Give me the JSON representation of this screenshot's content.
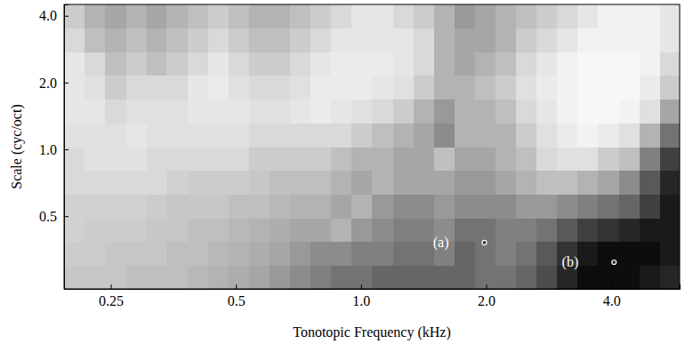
{
  "chart_data": {
    "type": "heatmap",
    "x_label": "Tonotopic Frequency (kHz)",
    "y_label": "Scale (cyc/oct)",
    "log": true,
    "xlim": [
      0.193,
      5.84
    ],
    "ylim": [
      0.235,
      4.5
    ],
    "xticks": [
      0.25,
      0.5,
      {
        "value": 1,
        "label": "1.0"
      },
      {
        "value": 2,
        "label": "2.0"
      },
      {
        "value": 4,
        "label": "4.0"
      }
    ],
    "yticks": [
      0.5,
      {
        "value": 1,
        "label": "1.0"
      },
      {
        "value": 2,
        "label": "2.0"
      },
      {
        "value": 4,
        "label": "4.0"
      }
    ],
    "x": [
      0.204,
      0.229,
      0.257,
      0.288,
      0.322,
      0.361,
      0.405,
      0.453,
      0.508,
      0.569,
      0.638,
      0.715,
      0.801,
      0.897,
      1.005,
      1.126,
      1.262,
      1.414,
      1.584,
      1.775,
      1.989,
      2.229,
      2.497,
      2.798,
      3.135,
      3.513,
      3.937,
      4.411,
      4.943,
      5.538
    ],
    "y": [
      0.266,
      0.34,
      0.435,
      0.556,
      0.711,
      0.91,
      1.164,
      1.489,
      1.904,
      2.435,
      3.115,
      3.984
    ],
    "zlim": [
      0,
      1
    ],
    "z": [
      [
        0.22,
        0.22,
        0.22,
        0.25,
        0.25,
        0.25,
        0.28,
        0.3,
        0.32,
        0.35,
        0.4,
        0.45,
        0.5,
        0.55,
        0.55,
        0.6,
        0.6,
        0.6,
        0.6,
        0.6,
        0.55,
        0.55,
        0.6,
        0.7,
        0.85,
        0.95,
        0.95,
        0.95,
        0.9,
        0.85
      ],
      [
        0.2,
        0.2,
        0.22,
        0.22,
        0.22,
        0.25,
        0.25,
        0.28,
        0.3,
        0.32,
        0.35,
        0.4,
        0.45,
        0.45,
        0.5,
        0.5,
        0.55,
        0.55,
        0.5,
        0.6,
        0.55,
        0.5,
        0.55,
        0.65,
        0.8,
        0.9,
        0.95,
        0.95,
        0.95,
        0.9
      ],
      [
        0.18,
        0.2,
        0.2,
        0.2,
        0.22,
        0.22,
        0.25,
        0.25,
        0.28,
        0.3,
        0.32,
        0.35,
        0.35,
        0.3,
        0.4,
        0.45,
        0.5,
        0.5,
        0.45,
        0.55,
        0.55,
        0.5,
        0.5,
        0.55,
        0.65,
        0.75,
        0.8,
        0.85,
        0.9,
        0.9
      ],
      [
        0.18,
        0.18,
        0.18,
        0.18,
        0.2,
        0.22,
        0.22,
        0.22,
        0.25,
        0.25,
        0.28,
        0.3,
        0.3,
        0.35,
        0.3,
        0.4,
        0.45,
        0.45,
        0.4,
        0.45,
        0.45,
        0.45,
        0.4,
        0.4,
        0.45,
        0.5,
        0.55,
        0.6,
        0.75,
        0.9
      ],
      [
        0.15,
        0.15,
        0.15,
        0.15,
        0.15,
        0.18,
        0.2,
        0.2,
        0.2,
        0.22,
        0.25,
        0.25,
        0.25,
        0.3,
        0.35,
        0.3,
        0.35,
        0.35,
        0.35,
        0.4,
        0.4,
        0.35,
        0.3,
        0.25,
        0.25,
        0.3,
        0.35,
        0.45,
        0.65,
        0.85
      ],
      [
        0.15,
        0.12,
        0.12,
        0.12,
        0.15,
        0.15,
        0.15,
        0.15,
        0.15,
        0.2,
        0.2,
        0.2,
        0.2,
        0.25,
        0.3,
        0.3,
        0.35,
        0.35,
        0.25,
        0.35,
        0.35,
        0.3,
        0.25,
        0.15,
        0.12,
        0.12,
        0.2,
        0.25,
        0.5,
        0.75
      ],
      [
        0.12,
        0.12,
        0.12,
        0.1,
        0.12,
        0.12,
        0.12,
        0.12,
        0.12,
        0.15,
        0.15,
        0.15,
        0.15,
        0.15,
        0.2,
        0.25,
        0.3,
        0.35,
        0.45,
        0.3,
        0.3,
        0.3,
        0.2,
        0.12,
        0.08,
        0.05,
        0.08,
        0.12,
        0.3,
        0.55
      ],
      [
        0.1,
        0.1,
        0.15,
        0.12,
        0.12,
        0.12,
        0.1,
        0.1,
        0.1,
        0.12,
        0.12,
        0.1,
        0.08,
        0.1,
        0.12,
        0.15,
        0.2,
        0.3,
        0.4,
        0.3,
        0.3,
        0.25,
        0.15,
        0.1,
        0.05,
        0.03,
        0.03,
        0.05,
        0.12,
        0.35
      ],
      [
        0.1,
        0.12,
        0.2,
        0.15,
        0.15,
        0.15,
        0.1,
        0.08,
        0.12,
        0.15,
        0.15,
        0.12,
        0.08,
        0.08,
        0.08,
        0.1,
        0.12,
        0.2,
        0.3,
        0.3,
        0.25,
        0.2,
        0.12,
        0.08,
        0.05,
        0.03,
        0.03,
        0.03,
        0.08,
        0.2
      ],
      [
        0.1,
        0.15,
        0.25,
        0.2,
        0.25,
        0.2,
        0.15,
        0.1,
        0.15,
        0.2,
        0.2,
        0.15,
        0.1,
        0.08,
        0.08,
        0.08,
        0.1,
        0.15,
        0.3,
        0.35,
        0.3,
        0.25,
        0.15,
        0.1,
        0.05,
        0.03,
        0.03,
        0.03,
        0.05,
        0.15
      ],
      [
        0.15,
        0.25,
        0.3,
        0.25,
        0.3,
        0.25,
        0.2,
        0.15,
        0.2,
        0.25,
        0.25,
        0.2,
        0.15,
        0.1,
        0.1,
        0.1,
        0.1,
        0.15,
        0.3,
        0.35,
        0.35,
        0.3,
        0.2,
        0.15,
        0.1,
        0.05,
        0.05,
        0.05,
        0.05,
        0.1
      ],
      [
        0.2,
        0.3,
        0.35,
        0.3,
        0.35,
        0.3,
        0.25,
        0.2,
        0.25,
        0.3,
        0.3,
        0.25,
        0.2,
        0.15,
        0.1,
        0.1,
        0.15,
        0.2,
        0.3,
        0.4,
        0.35,
        0.3,
        0.25,
        0.2,
        0.15,
        0.1,
        0.05,
        0.05,
        0.05,
        0.1
      ]
    ],
    "annotations": [
      {
        "text": "(a)",
        "x": 1.98,
        "y": 0.38
      },
      {
        "text": "(b)",
        "x": 4.06,
        "y": 0.31
      }
    ]
  }
}
